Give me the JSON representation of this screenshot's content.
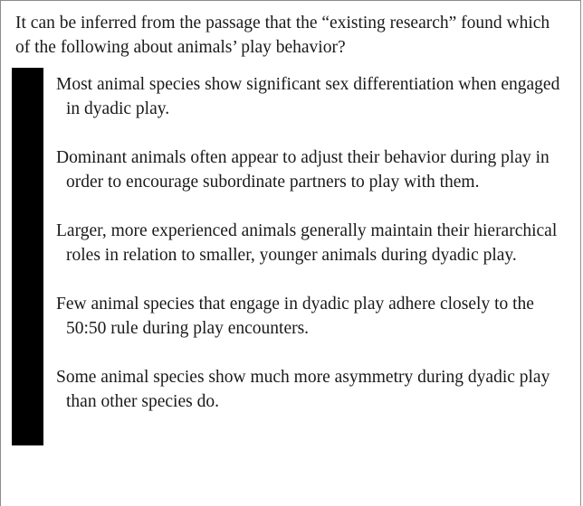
{
  "question": {
    "text": "It can be inferred from the passage that the “existing research” found which of the following about animals’ play behavior?"
  },
  "choices": [
    {
      "text": "Most animal species show significant sex differentiation when engaged in dyadic play."
    },
    {
      "text": "Dominant animals often appear to adjust their behavior during play in order to encourage subordinate partners to play with them."
    },
    {
      "text": "Larger, more experienced animals generally maintain their hierarchical roles in relation to smaller, younger animals during dyadic play."
    },
    {
      "text": "Few animal species that engage in dyadic play adhere closely to the 50:50 rule during play encounters."
    },
    {
      "text": "Some animal species show much more asymmetry during dyadic play than other species do."
    }
  ],
  "colors": {
    "selection_bar": "#000000",
    "text": "#1a1a1a",
    "border": "#8c8c8c"
  }
}
